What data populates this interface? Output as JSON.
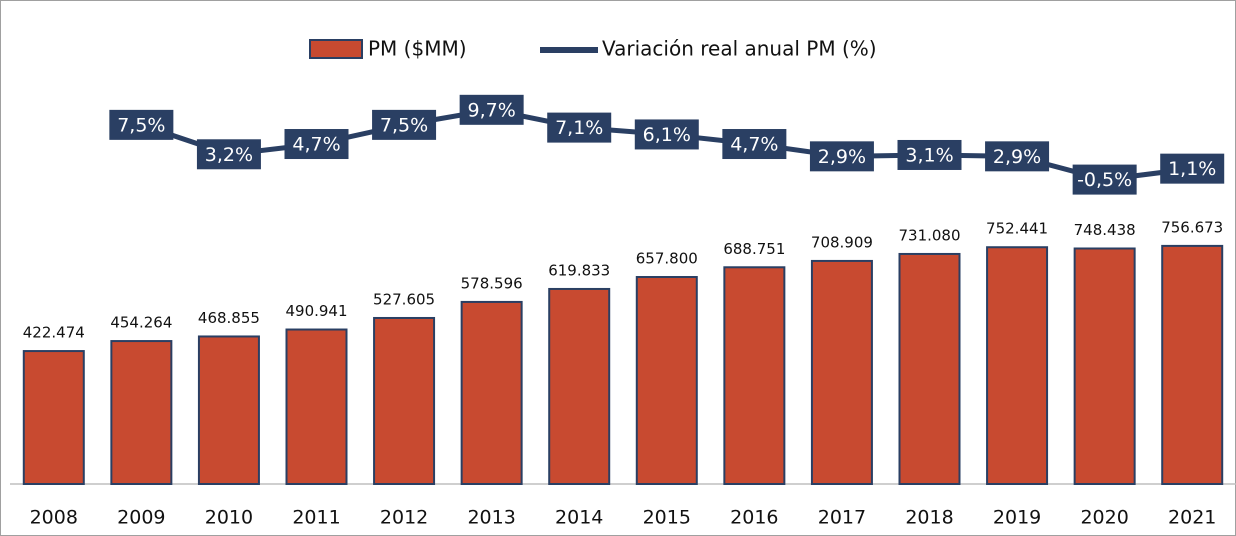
{
  "chart_data": {
    "type": "bar_line",
    "categories": [
      "2008",
      "2009",
      "2010",
      "2011",
      "2012",
      "2013",
      "2014",
      "2015",
      "2016",
      "2017",
      "2018",
      "2019",
      "2020",
      "2021"
    ],
    "ylim": [
      0,
      1500
    ],
    "y2lim": [
      -45,
      24
    ],
    "series": [
      {
        "name": "PM ($MM)",
        "type": "bar",
        "color": "#c84a30",
        "values": [
          422.474,
          454.264,
          468.855,
          490.941,
          527.605,
          578.596,
          619.833,
          657.8,
          688.751,
          708.909,
          731.08,
          752.441,
          748.438,
          756.673
        ],
        "value_labels": [
          "422.474",
          "454.264",
          "468.855",
          "490.941",
          "527.605",
          "578.596",
          "619.833",
          "657.800",
          "688.751",
          "708.909",
          "731.080",
          "752.441",
          "748.438",
          "756.673"
        ]
      },
      {
        "name": "Variación real anual PM (%)",
        "type": "line",
        "axis": "y2",
        "color": "#2a3f63",
        "values": [
          null,
          7.5,
          3.2,
          4.7,
          7.5,
          9.7,
          7.1,
          6.1,
          4.7,
          2.9,
          3.1,
          2.9,
          -0.5,
          1.1
        ],
        "value_labels": [
          null,
          "7,5%",
          "3,2%",
          "4,7%",
          "7,5%",
          "9,7%",
          "7,1%",
          "6,1%",
          "4,7%",
          "2,9%",
          "3,1%",
          "2,9%",
          "-0,5%",
          "1,1%"
        ]
      }
    ]
  }
}
